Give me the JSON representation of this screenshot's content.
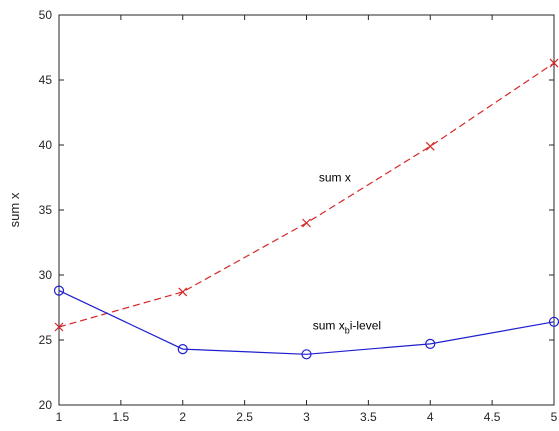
{
  "chart_data": {
    "type": "line",
    "ylabel": "sum x",
    "xlim": [
      1,
      5
    ],
    "ylim": [
      20,
      50
    ],
    "x_ticks": [
      "1",
      "1.5",
      "2",
      "2.5",
      "3",
      "3.5",
      "4",
      "4.5",
      "5"
    ],
    "y_ticks": [
      "20",
      "25",
      "30",
      "35",
      "40",
      "45",
      "50"
    ],
    "grid": false,
    "series": [
      {
        "x": [
          1,
          2,
          3,
          4,
          5
        ],
        "values": [
          26.0,
          28.7,
          34.0,
          39.9,
          46.3
        ],
        "color": "#d62728",
        "line_style": "dashed",
        "marker": "x"
      },
      {
        "x": [
          1,
          2,
          3,
          4,
          5
        ],
        "values": [
          28.8,
          24.3,
          23.9,
          24.7,
          26.4
        ],
        "color": "#1f1fd0",
        "line_style": "solid",
        "marker": "o"
      }
    ],
    "annotations": [
      {
        "text": "sum x",
        "x": 3.1,
        "y": 37.2
      },
      {
        "text_main": "sum x",
        "text_sub": "b",
        "text_after": "i-level",
        "x": 3.05,
        "y": 25.8
      }
    ]
  }
}
